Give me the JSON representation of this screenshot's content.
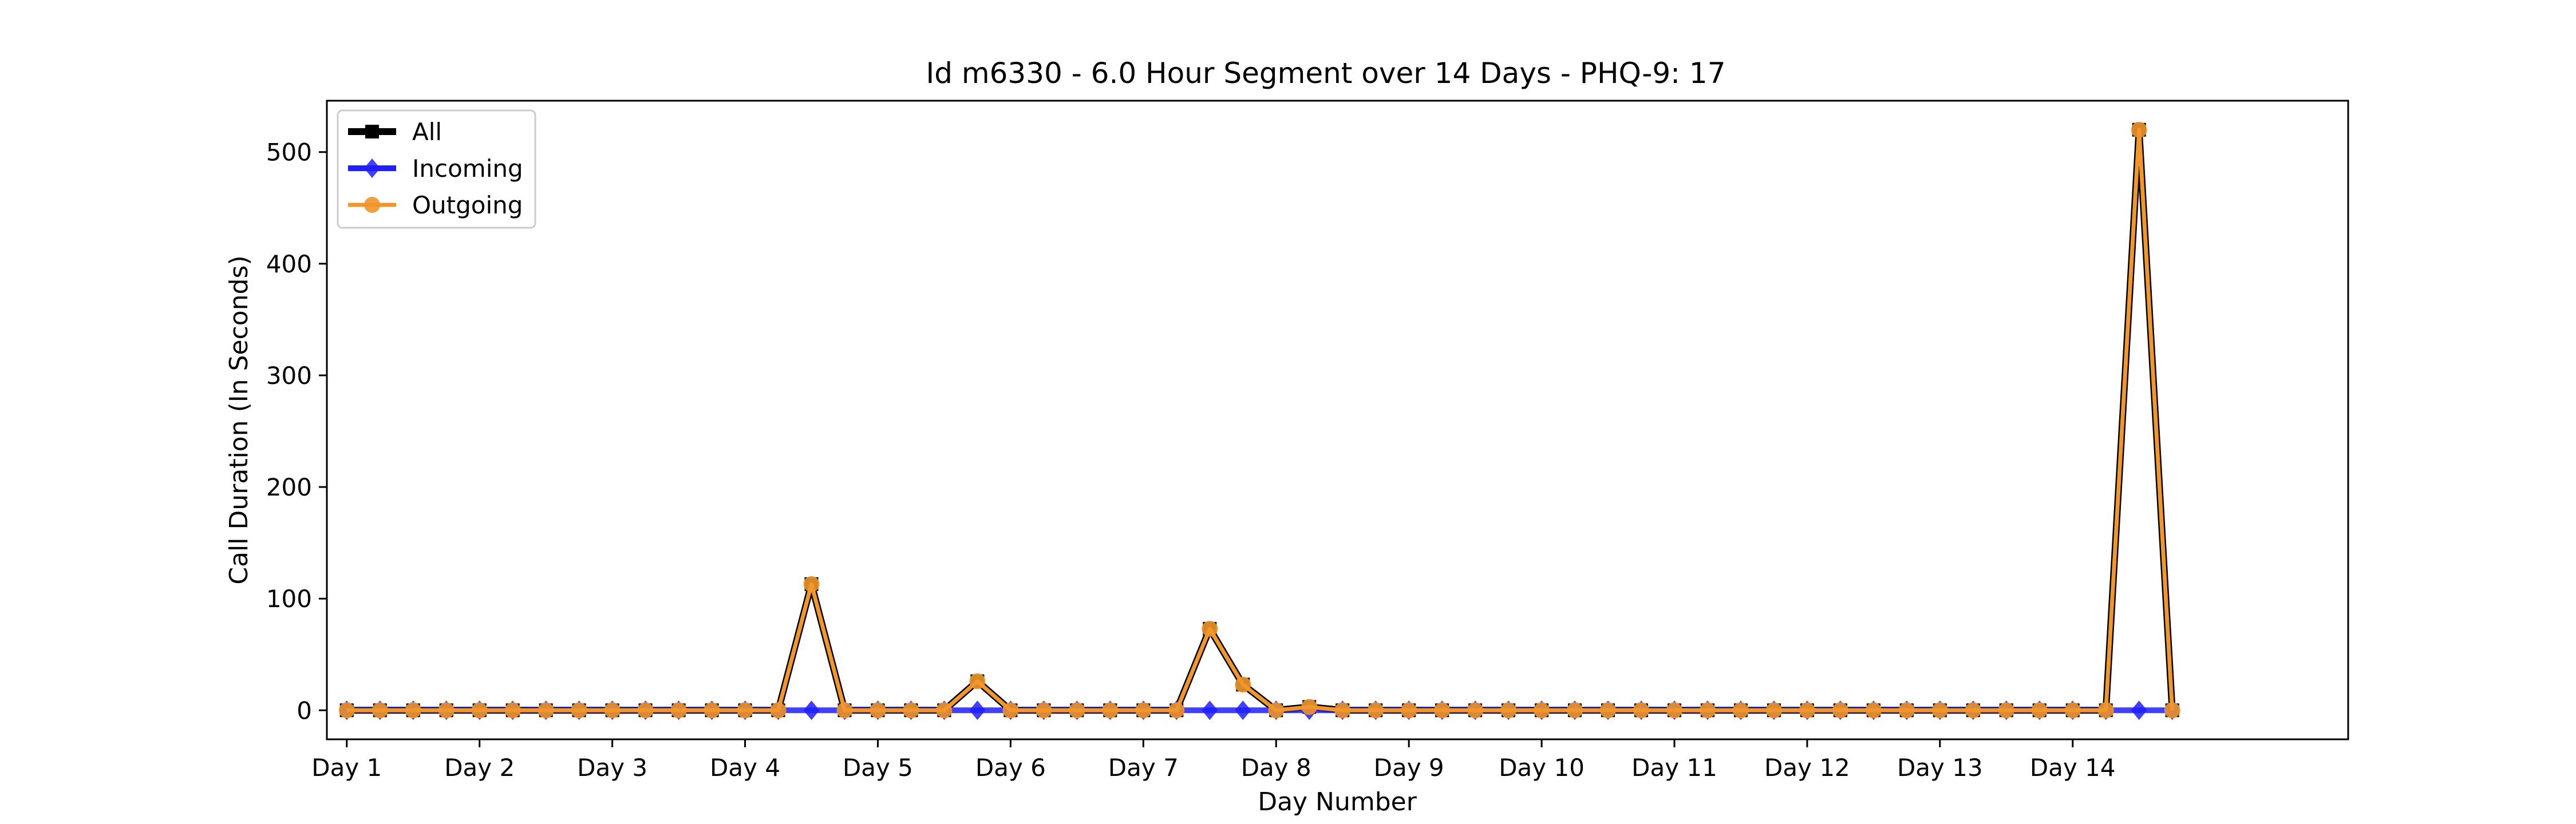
{
  "chart_data": {
    "type": "line",
    "title": "Id m6330 - 6.0 Hour Segment over 14 Days - PHQ-9: 17",
    "xlabel": "Day Number",
    "ylabel": "Call Duration (In Seconds)",
    "xlim": [
      -0.6,
      60.3
    ],
    "ylim": [
      -26,
      546
    ],
    "xticks": [
      0,
      4,
      8,
      12,
      16,
      20,
      24,
      28,
      32,
      36,
      40,
      44,
      48,
      52
    ],
    "xtick_labels": [
      "Day 1",
      "Day 2",
      "Day 3",
      "Day 4",
      "Day 5",
      "Day 6",
      "Day 7",
      "Day 8",
      "Day 9",
      "Day 10",
      "Day 11",
      "Day 12",
      "Day 13",
      "Day 14"
    ],
    "yticks": [
      0,
      100,
      200,
      300,
      400,
      500
    ],
    "ytick_labels": [
      "0",
      "100",
      "200",
      "300",
      "400",
      "500"
    ],
    "x": [
      0,
      1,
      2,
      3,
      4,
      5,
      6,
      7,
      8,
      9,
      10,
      11,
      12,
      13,
      14,
      15,
      16,
      17,
      18,
      19,
      20,
      21,
      22,
      23,
      24,
      25,
      26,
      27,
      28,
      29,
      30,
      31,
      32,
      33,
      34,
      35,
      36,
      37,
      38,
      39,
      40,
      41,
      42,
      43,
      44,
      45,
      46,
      47,
      48,
      49,
      50,
      51,
      52,
      53,
      54,
      55
    ],
    "legend_position": "top-left",
    "grid": false,
    "series": [
      {
        "name": "All",
        "color": "#000000",
        "marker": "square",
        "values": [
          0,
          0,
          0,
          0,
          0,
          0,
          0,
          0,
          0,
          0,
          0,
          0,
          0,
          0,
          113,
          0,
          0,
          0,
          0,
          26,
          0,
          0,
          0,
          0,
          0,
          0,
          73,
          23,
          0,
          3,
          0,
          0,
          0,
          0,
          0,
          0,
          0,
          0,
          0,
          0,
          0,
          0,
          0,
          0,
          0,
          0,
          0,
          0,
          0,
          0,
          0,
          0,
          0,
          0,
          520,
          0
        ]
      },
      {
        "name": "Incoming",
        "color": "#1f1fff",
        "marker": "diamond",
        "values": [
          0,
          0,
          0,
          0,
          0,
          0,
          0,
          0,
          0,
          0,
          0,
          0,
          0,
          0,
          0,
          0,
          0,
          0,
          0,
          0,
          0,
          0,
          0,
          0,
          0,
          0,
          0,
          0,
          0,
          0,
          0,
          0,
          0,
          0,
          0,
          0,
          0,
          0,
          0,
          0,
          0,
          0,
          0,
          0,
          0,
          0,
          0,
          0,
          0,
          0,
          0,
          0,
          0,
          0,
          0,
          0
        ]
      },
      {
        "name": "Outgoing",
        "color": "#f0962a",
        "marker": "circle",
        "values": [
          0,
          0,
          0,
          0,
          0,
          0,
          0,
          0,
          0,
          0,
          0,
          0,
          0,
          0,
          113,
          0,
          0,
          0,
          0,
          26,
          0,
          0,
          0,
          0,
          0,
          0,
          73,
          23,
          0,
          3,
          0,
          0,
          0,
          0,
          0,
          0,
          0,
          0,
          0,
          0,
          0,
          0,
          0,
          0,
          0,
          0,
          0,
          0,
          0,
          0,
          0,
          0,
          0,
          0,
          520,
          0
        ]
      }
    ]
  }
}
